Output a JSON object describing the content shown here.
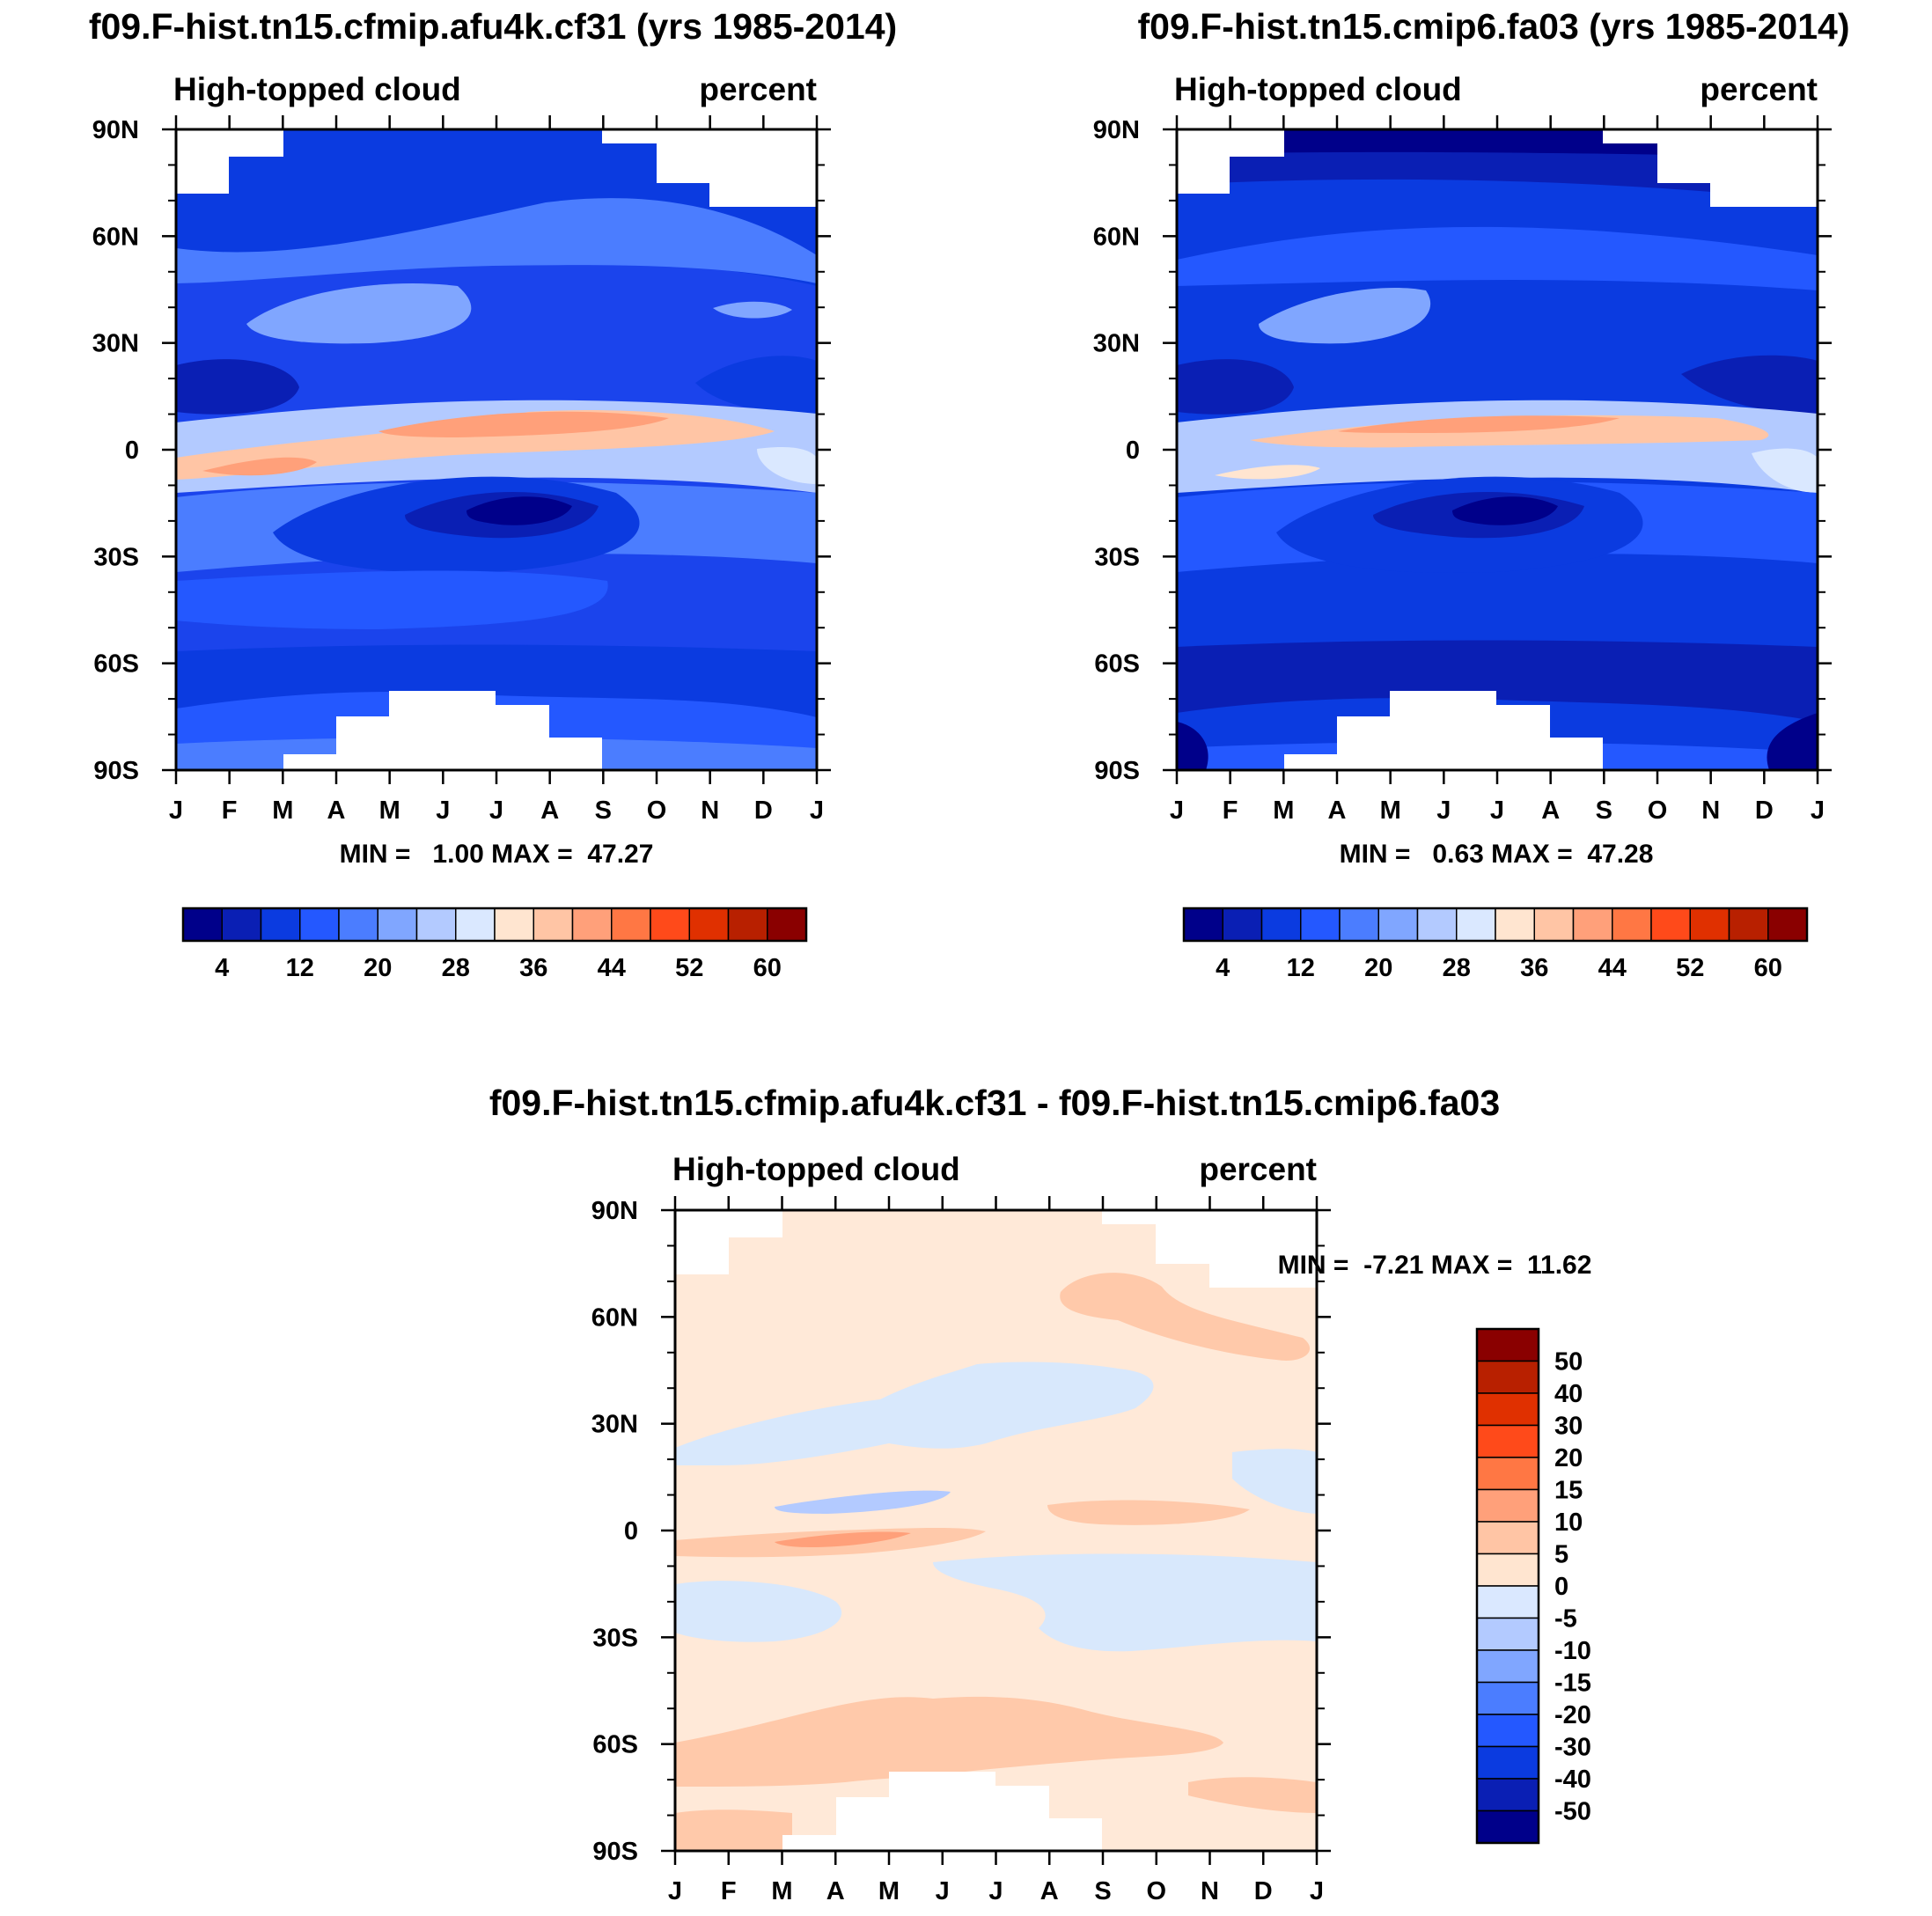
{
  "chart_data": [
    {
      "type": "heatmap",
      "id": "p1",
      "title": "f09.F-hist.tn15.cfmip.afu4k.cf31 (yrs 1985-2014)",
      "left_label": "High-topped cloud",
      "right_label": "percent",
      "xlabel": "",
      "ylabel": "",
      "x_ticks": [
        "J",
        "F",
        "M",
        "A",
        "M",
        "J",
        "J",
        "A",
        "S",
        "O",
        "N",
        "D",
        "J"
      ],
      "y_ticks": [
        "90N",
        "60N",
        "30N",
        "0",
        "30S",
        "60S",
        "90S"
      ],
      "stats_text": "MIN =   1.00 MAX =  47.27",
      "min": 1.0,
      "max": 47.27,
      "ylim": [
        -90,
        90
      ],
      "colorbar": {
        "orientation": "horizontal",
        "colors": [
          "#00008a",
          "#0a1fb4",
          "#0b3be0",
          "#2458ff",
          "#4b7dff",
          "#80a6ff",
          "#b3caff",
          "#dae8ff",
          "#ffe5d0",
          "#ffc5a5",
          "#ffa07a",
          "#ff7744",
          "#ff4a1a",
          "#e03000",
          "#b82000",
          "#8a0000"
        ],
        "labels": [
          "4",
          "12",
          "20",
          "28",
          "36",
          "44",
          "52",
          "60"
        ]
      }
    },
    {
      "type": "heatmap",
      "id": "p2",
      "title": "f09.F-hist.tn15.cmip6.fa03 (yrs 1985-2014)",
      "left_label": "High-topped cloud",
      "right_label": "percent",
      "xlabel": "",
      "ylabel": "",
      "x_ticks": [
        "J",
        "F",
        "M",
        "A",
        "M",
        "J",
        "J",
        "A",
        "S",
        "O",
        "N",
        "D",
        "J"
      ],
      "y_ticks": [
        "90N",
        "60N",
        "30N",
        "0",
        "30S",
        "60S",
        "90S"
      ],
      "stats_text": "MIN =   0.63 MAX =  47.28",
      "min": 0.63,
      "max": 47.28,
      "ylim": [
        -90,
        90
      ],
      "colorbar": {
        "orientation": "horizontal",
        "colors": [
          "#00008a",
          "#0a1fb4",
          "#0b3be0",
          "#2458ff",
          "#4b7dff",
          "#80a6ff",
          "#b3caff",
          "#dae8ff",
          "#ffe5d0",
          "#ffc5a5",
          "#ffa07a",
          "#ff7744",
          "#ff4a1a",
          "#e03000",
          "#b82000",
          "#8a0000"
        ],
        "labels": [
          "4",
          "12",
          "20",
          "28",
          "36",
          "44",
          "52",
          "60"
        ]
      }
    },
    {
      "type": "heatmap",
      "id": "p3",
      "title": "f09.F-hist.tn15.cfmip.afu4k.cf31 - f09.F-hist.tn15.cmip6.fa03",
      "left_label": "High-topped cloud",
      "right_label": "percent",
      "xlabel": "",
      "ylabel": "",
      "x_ticks": [
        "J",
        "F",
        "M",
        "A",
        "M",
        "J",
        "J",
        "A",
        "S",
        "O",
        "N",
        "D",
        "J"
      ],
      "y_ticks": [
        "90N",
        "60N",
        "30N",
        "0",
        "30S",
        "60S",
        "90S"
      ],
      "stats_text": "MIN =  -7.21 MAX =  11.62",
      "min": -7.21,
      "max": 11.62,
      "ylim": [
        -90,
        90
      ],
      "colorbar": {
        "orientation": "vertical",
        "colors": [
          "#8a0000",
          "#b82000",
          "#e03000",
          "#ff4a1a",
          "#ff7744",
          "#ffa07a",
          "#ffc5a5",
          "#ffe5d0",
          "#dae8ff",
          "#b3caff",
          "#80a6ff",
          "#4b7dff",
          "#2458ff",
          "#0b3be0",
          "#0a1fb4",
          "#00008a"
        ],
        "labels": [
          "50",
          "40",
          "30",
          "20",
          "15",
          "10",
          "5",
          "0",
          "-5",
          "-10",
          "-15",
          "-20",
          "-30",
          "-40",
          "-50"
        ]
      }
    }
  ]
}
